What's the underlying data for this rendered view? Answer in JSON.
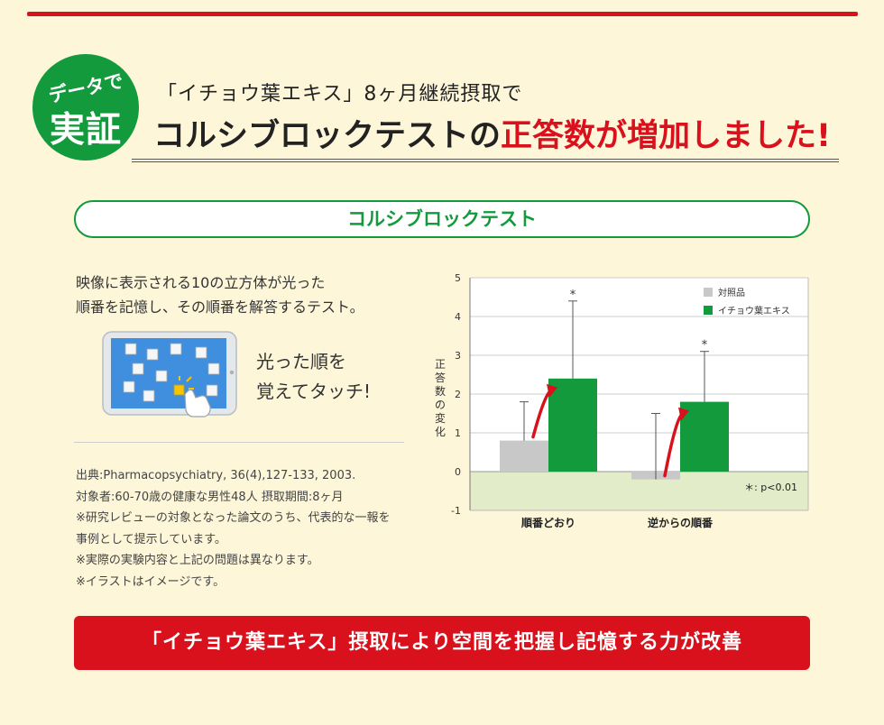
{
  "header": {
    "badge_small": "データで",
    "badge_big": "実証",
    "subtitle": "「イチョウ葉エキス」8ヶ月継続摂取で",
    "title_part1": "コルシブロックテストの",
    "title_part2": "正答数が増加しました!"
  },
  "section": {
    "title": "コルシブロックテスト"
  },
  "description": {
    "line1": "映像に表示される10の立方体が光った",
    "line2": "順番を記憶し、その順番を解答するテスト。"
  },
  "illustration": {
    "caption_line1": "光った順を",
    "caption_line2": "覚えてタッチ!"
  },
  "notes": {
    "line1": "出典:Pharmacopsychiatry, 36(4),127-133, 2003.",
    "line2": "対象者:60-70歳の健康な男性48人 摂取期間:8ヶ月",
    "line3": "※研究レビューの対象となった論文のうち、代表的な一報を",
    "line4": "事例として提示しています。",
    "line5": "※実際の実験内容と上記の問題は異なります。",
    "line6": "※イラストはイメージです。"
  },
  "chart_data": {
    "type": "bar",
    "ylabel": "正答数の変化",
    "ylim": [
      -1,
      5
    ],
    "yticks": [
      "5",
      "4",
      "3",
      "2",
      "1",
      "0",
      "-1"
    ],
    "categories": [
      "順番どおり",
      "逆からの順番"
    ],
    "series": [
      {
        "name": "対照品",
        "values": [
          0.8,
          -0.2
        ],
        "error_upper": [
          1.8,
          1.5
        ],
        "color": "#c8c8c8"
      },
      {
        "name": "イチョウ葉エキス",
        "values": [
          2.4,
          1.8
        ],
        "error_upper": [
          4.4,
          3.1
        ],
        "color": "#129a3c"
      }
    ],
    "significance_marker": "*",
    "annotation": "＊: p<0.01",
    "legend_position": "top-right",
    "negative_region_color": "#e3ecc8"
  },
  "footer": {
    "banner": "「イチョウ葉エキス」摂取により空間を把握し記憶する力が改善"
  },
  "colors": {
    "brand_red": "#d9111c",
    "brand_green": "#129a3c",
    "background": "#fdf6d8"
  }
}
